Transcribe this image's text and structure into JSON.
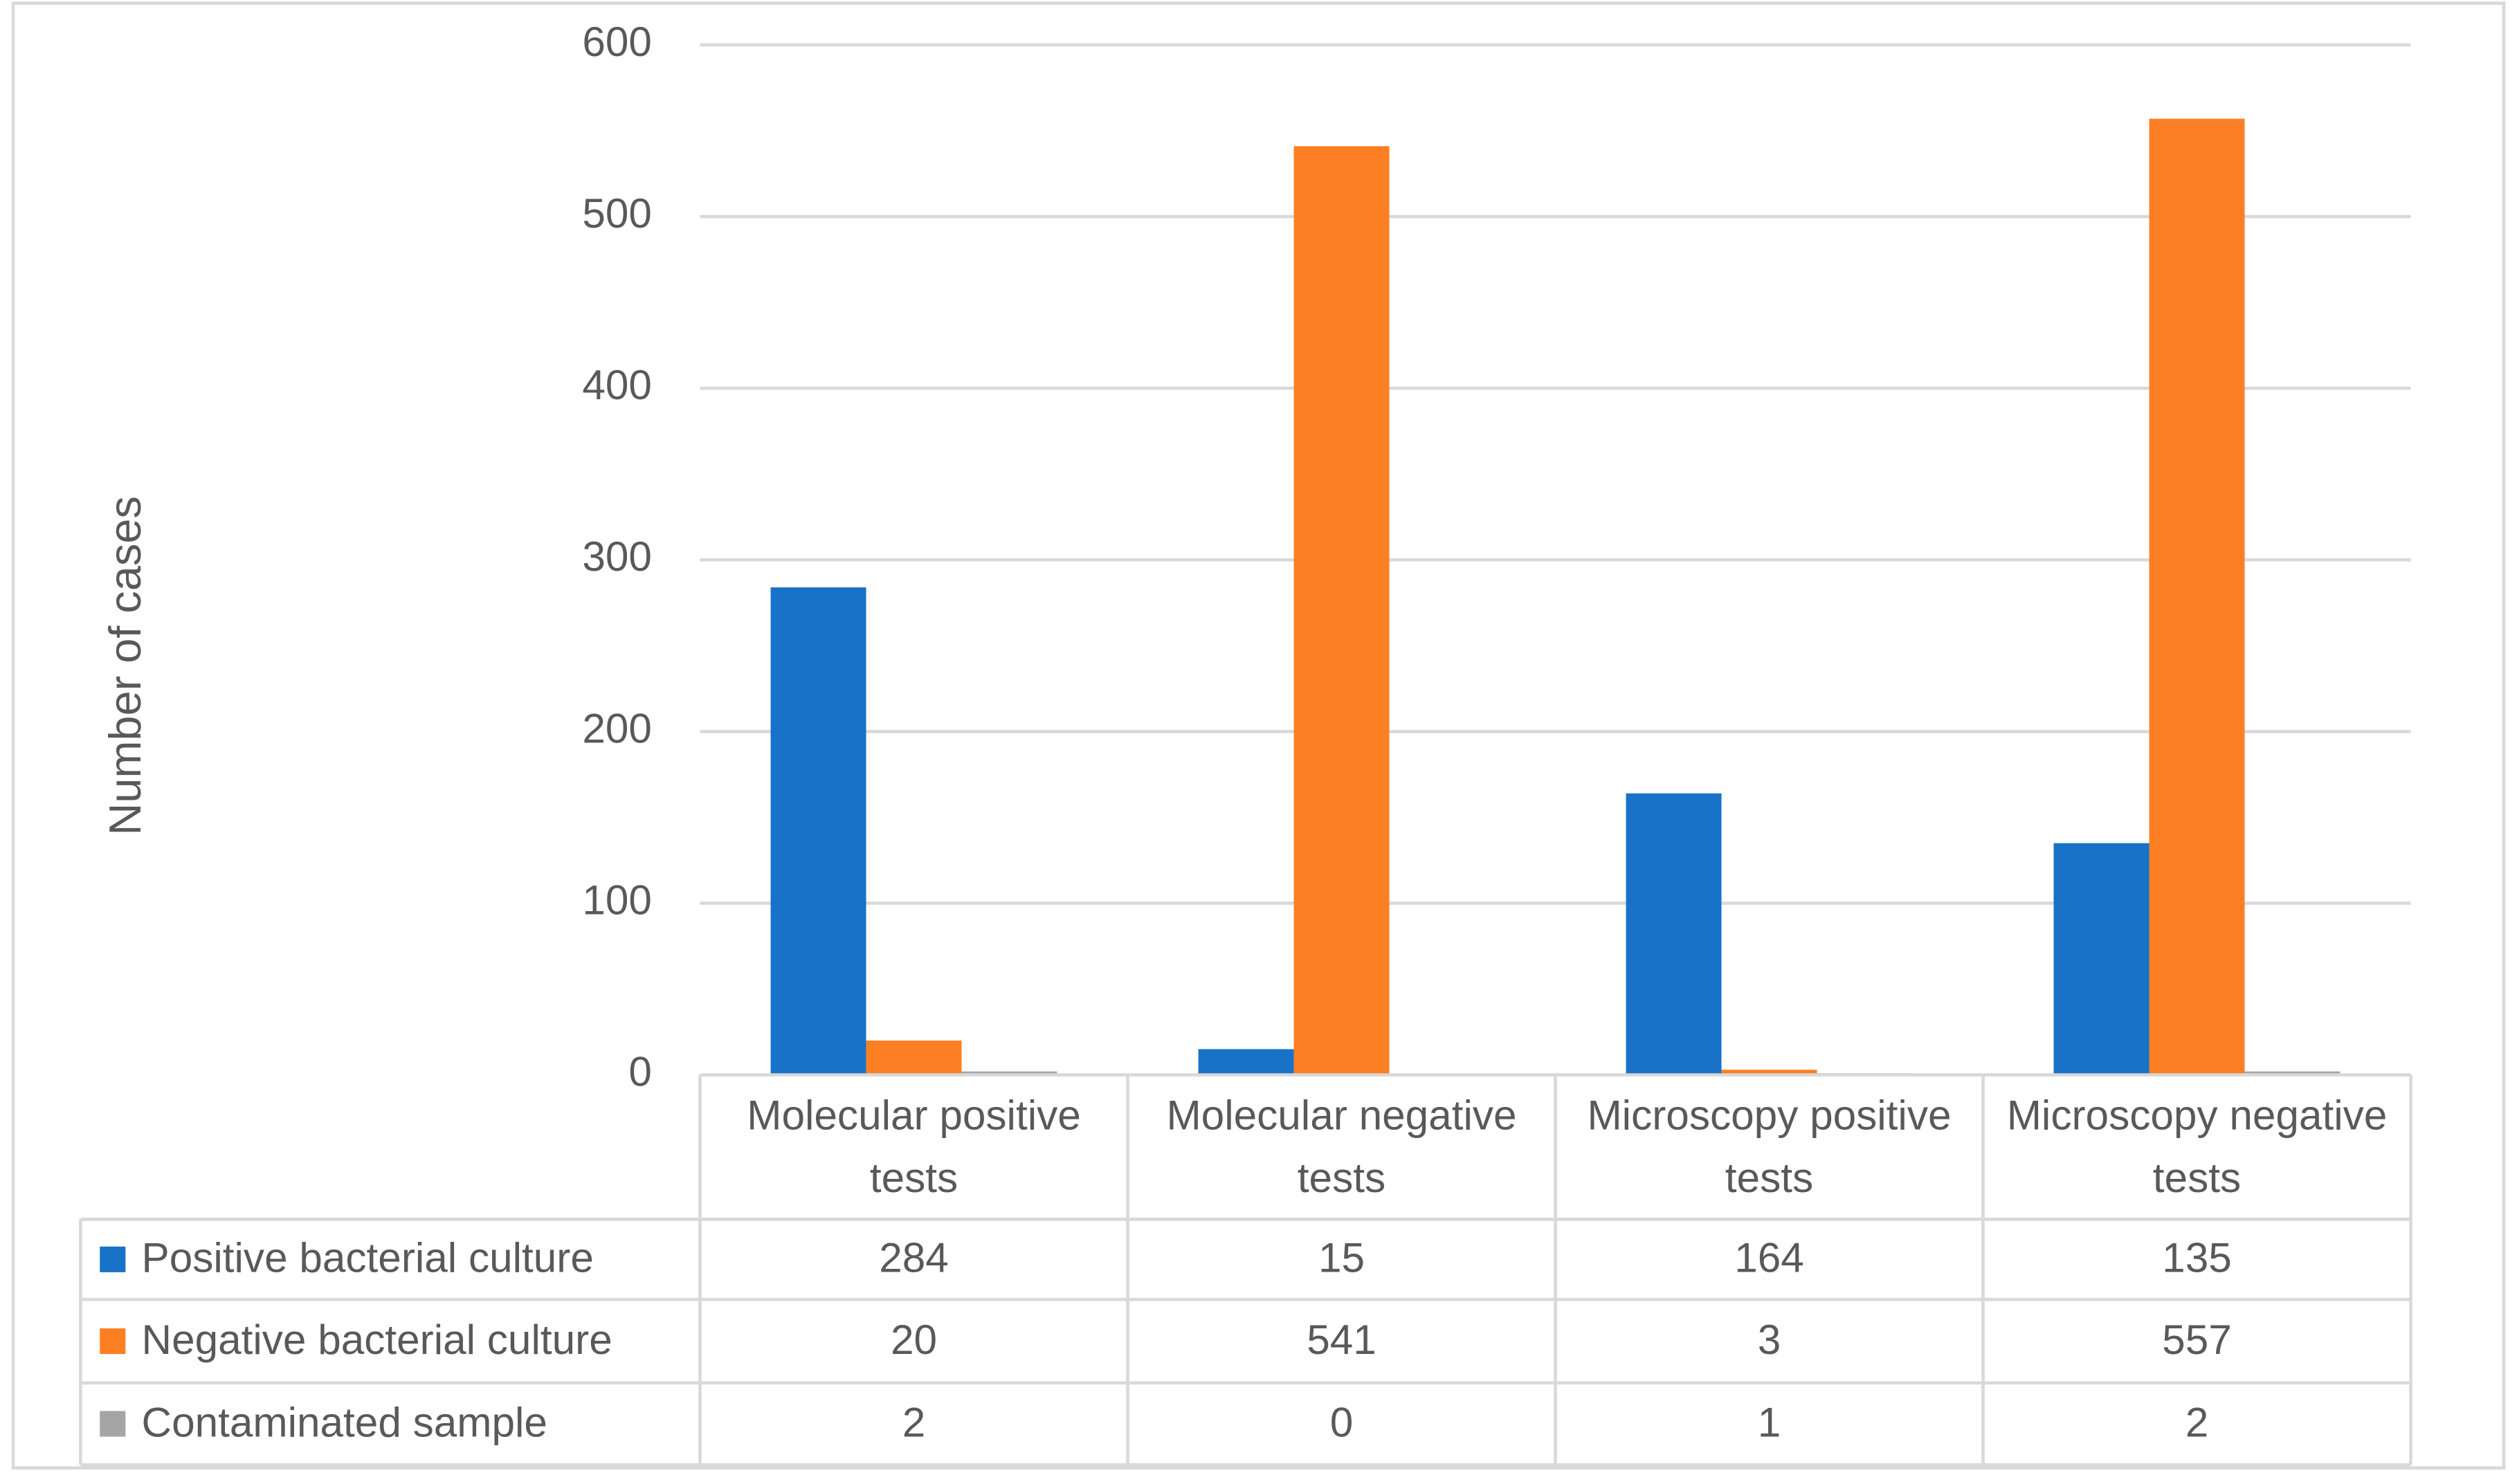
{
  "chart_data": {
    "type": "bar",
    "y_label": "Number of cases",
    "categories": [
      "Molecular positive tests",
      "Molecular negative tests",
      "Microscopy positive tests",
      "Microscopy negative tests"
    ],
    "series": [
      {
        "name": "Positive bacterial culture",
        "color": "#1872c8",
        "values": [
          284,
          15,
          164,
          135
        ]
      },
      {
        "name": "Negative bacterial culture",
        "color": "#fd7f23",
        "values": [
          20,
          541,
          3,
          557
        ]
      },
      {
        "name": "Contaminated sample",
        "color": "#a5a5a5",
        "values": [
          2,
          0,
          1,
          2
        ]
      }
    ],
    "ylim": [
      0,
      600
    ],
    "yticks": [
      0,
      100,
      200,
      300,
      400,
      500,
      600
    ],
    "grid": true,
    "data_table": true
  }
}
